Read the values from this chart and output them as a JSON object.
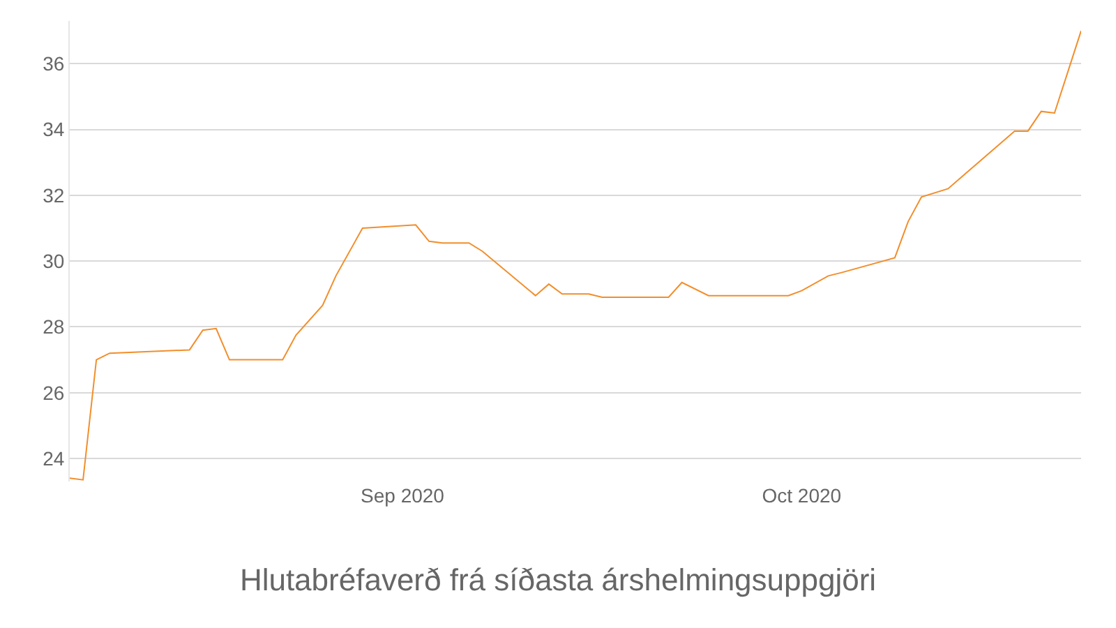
{
  "chart_data": {
    "type": "line",
    "title": "Hlutabréfaverð frá síðasta árshelmingsuppgjöri",
    "x": [
      "2020-08-07",
      "2020-08-08",
      "2020-08-09",
      "2020-08-10",
      "2020-08-16",
      "2020-08-17",
      "2020-08-18",
      "2020-08-19",
      "2020-08-23",
      "2020-08-24",
      "2020-08-26",
      "2020-08-27",
      "2020-08-29",
      "2020-09-02",
      "2020-09-03",
      "2020-09-04",
      "2020-09-06",
      "2020-09-07",
      "2020-09-11",
      "2020-09-12",
      "2020-09-13",
      "2020-09-15",
      "2020-09-16",
      "2020-09-21",
      "2020-09-22",
      "2020-09-24",
      "2020-09-30",
      "2020-10-01",
      "2020-10-03",
      "2020-10-04",
      "2020-10-08",
      "2020-10-09",
      "2020-10-10",
      "2020-10-12",
      "2020-10-17",
      "2020-10-18",
      "2020-10-19",
      "2020-10-20",
      "2020-10-22"
    ],
    "series": [
      {
        "color": "#f28e2b",
        "values": [
          23.4,
          23.35,
          27.0,
          27.2,
          27.3,
          27.9,
          27.95,
          27.0,
          27.0,
          27.75,
          28.65,
          29.55,
          31.0,
          31.1,
          30.6,
          30.55,
          30.55,
          30.3,
          28.95,
          29.3,
          29.0,
          29.0,
          28.9,
          28.9,
          29.35,
          28.95,
          28.95,
          29.1,
          29.55,
          29.65,
          30.1,
          31.2,
          31.95,
          32.2,
          33.95,
          33.95,
          34.55,
          34.5,
          37.0
        ]
      }
    ],
    "xlim": [
      "2020-08-07",
      "2020-10-22"
    ],
    "xticks": [
      {
        "value": "2020-09-01",
        "label": "Sep 2020"
      },
      {
        "value": "2020-10-01",
        "label": "Oct 2020"
      }
    ],
    "ylim": [
      23.3,
      37.3
    ],
    "yticks": [
      24,
      26,
      28,
      30,
      32,
      34,
      36
    ],
    "grid": "y",
    "marker": "none",
    "line_style": "solid"
  }
}
